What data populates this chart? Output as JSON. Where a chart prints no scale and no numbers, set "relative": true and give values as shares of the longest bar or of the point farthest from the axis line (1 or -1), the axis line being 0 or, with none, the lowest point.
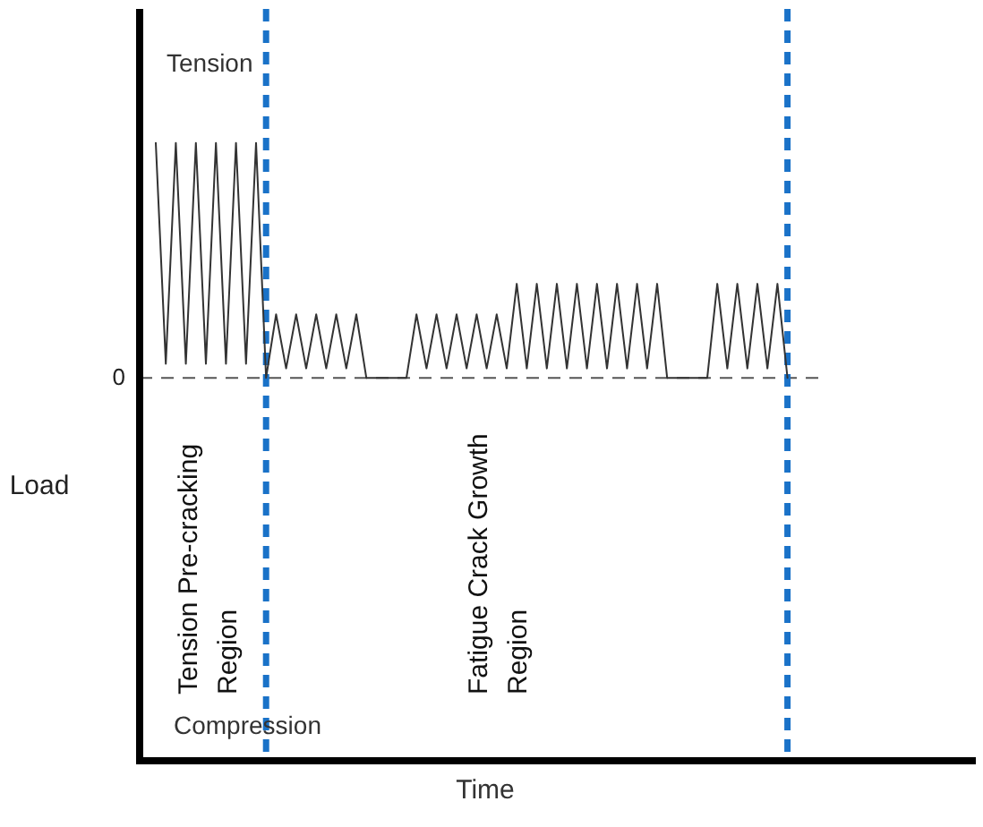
{
  "chart_data": {
    "type": "line",
    "relative": true,
    "ylabel": "Load",
    "categories": [
      null,
      null,
      null,
      null,
      null,
      null,
      null,
      null,
      null,
      null,
      null,
      null,
      null,
      null,
      null,
      null,
      null,
      null,
      null,
      null,
      null,
      null,
      null,
      null,
      null,
      null,
      null,
      null,
      null,
      null,
      null,
      null,
      null,
      null,
      null,
      null,
      null,
      null,
      null,
      null,
      null,
      null,
      null,
      null,
      null,
      null,
      null,
      null,
      null,
      null,
      null,
      null,
      null,
      null,
      null,
      null,
      null,
      null,
      null,
      null,
      null,
      null,
      null,
      null
    ],
    "series": [
      {
        "color": "#333333",
        "values": [
          1,
          0.06,
          1,
          0.06,
          1,
          0.06,
          1,
          0.06,
          1,
          0.06,
          1,
          0,
          0.27,
          0.04,
          0.27,
          0.04,
          0.27,
          0.04,
          0.27,
          0.04,
          0.27,
          0,
          0,
          0,
          0,
          0,
          0.27,
          0.04,
          0.27,
          0.04,
          0.27,
          0.04,
          0.27,
          0.04,
          0.27,
          0.04,
          0.4,
          0.04,
          0.4,
          0.04,
          0.4,
          0.04,
          0.4,
          0.04,
          0.4,
          0.04,
          0.4,
          0.04,
          0.4,
          0.04,
          0.4,
          0,
          0,
          0,
          0,
          0,
          0.4,
          0.04,
          0.4,
          0.04,
          0.4,
          0.04,
          0.4,
          0
        ]
      }
    ],
    "marker": "none",
    "line_style": "solid",
    "ref_lines": [
      {
        "axis": "y",
        "value": 0,
        "label": "0",
        "color": "#555555",
        "line_style": "dashed"
      }
    ],
    "annotations": [
      "Tension",
      "Compression",
      "Tension Pre-cracking Region",
      "Fatigue Crack Growth Region",
      "Time"
    ]
  }
}
